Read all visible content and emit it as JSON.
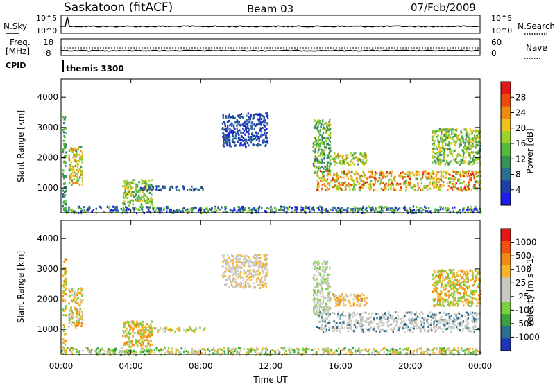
{
  "header": {
    "site": "Saskatoon (fitACF)",
    "beam": "Beam 03",
    "date": "07/Feb/2009"
  },
  "noise_panel": {
    "left_label": "N.Sky",
    "right_label": "N.Search",
    "left_ticks": [
      "10^5",
      "10^0"
    ],
    "right_ticks": [
      "10^5",
      "10^0"
    ]
  },
  "freq_panel": {
    "left_label_1": "Freq.",
    "left_label_2": "[MHz]",
    "right_label": "Nave",
    "left_ticks": [
      "18",
      "8"
    ],
    "right_ticks": [
      "60",
      "0"
    ]
  },
  "cpid": {
    "label": "CPID",
    "value": "themis 3300"
  },
  "colors": {
    "power": [
      "#1c1ce8",
      "#1e3ea8",
      "#2c6e8e",
      "#3a8f55",
      "#56b83c",
      "#9bd22e",
      "#f0c01c",
      "#f08a12",
      "#ea4a10",
      "#e01818"
    ],
    "velocity": [
      "#e01818",
      "#f05010",
      "#f08a12",
      "#f6b42a",
      "#c8c8c0",
      "#c8c8c0",
      "#7ad040",
      "#3aa040",
      "#2c6e8e",
      "#1c36b8"
    ]
  },
  "chart_data": [
    {
      "type": "heatmap",
      "name": "Power",
      "ylabel": "Slant Range [km]",
      "ylim": [
        180,
        4600
      ],
      "yticks": [
        "1000",
        "2000",
        "3000",
        "4000"
      ],
      "colorbar_label": "Power [dB]",
      "colorbar_ticks": [
        "4",
        "8",
        "12",
        "16",
        "20",
        "24",
        "28"
      ],
      "colorbar_range": [
        0,
        32
      ],
      "regions": [
        {
          "t0": 0.05,
          "t1": 0.25,
          "r0": 250,
          "r1": 3400,
          "v0": 8,
          "v1": 16
        },
        {
          "t0": 0.4,
          "t1": 1.2,
          "r0": 1100,
          "r1": 2400,
          "v0": 12,
          "v1": 26
        },
        {
          "t0": 3.5,
          "t1": 5.2,
          "r0": 450,
          "r1": 1300,
          "v0": 10,
          "v1": 22
        },
        {
          "t0": 4.5,
          "t1": 8.2,
          "r0": 950,
          "r1": 1100,
          "v0": 4,
          "v1": 10
        },
        {
          "t0": 9.2,
          "t1": 11.8,
          "r0": 2400,
          "r1": 3500,
          "v0": 2,
          "v1": 8
        },
        {
          "t0": 14.4,
          "t1": 15.4,
          "r0": 1500,
          "r1": 3300,
          "v0": 8,
          "v1": 20
        },
        {
          "t0": 15.5,
          "t1": 17.5,
          "r0": 1800,
          "r1": 2200,
          "v0": 12,
          "v1": 24
        },
        {
          "t0": 14.6,
          "t1": 24.0,
          "r0": 950,
          "r1": 1600,
          "v0": 14,
          "v1": 30
        },
        {
          "t0": 21.2,
          "t1": 24.0,
          "r0": 1800,
          "r1": 3000,
          "v0": 10,
          "v1": 22
        },
        {
          "t0": 0.0,
          "t1": 24.0,
          "r0": 200,
          "r1": 420,
          "v0": 0,
          "v1": 18
        }
      ]
    },
    {
      "type": "heatmap",
      "name": "Velocity",
      "ylabel": "Slant Range [km]",
      "xlabel": "Time UT",
      "ylim": [
        180,
        4600
      ],
      "yticks": [
        "1000",
        "2000",
        "3000",
        "4000"
      ],
      "xticks": [
        "00:00",
        "04:00",
        "08:00",
        "12:00",
        "16:00",
        "20:00",
        "00:00"
      ],
      "xlim_hours": [
        0,
        24
      ],
      "colorbar_label": "Velocity [m s^-1]",
      "colorbar_ticks": [
        "1000",
        "500",
        "100",
        "25",
        "-25",
        "-100",
        "-500",
        "-1000"
      ],
      "regions": [
        {
          "t0": 0.05,
          "t1": 0.25,
          "r0": 250,
          "r1": 3400,
          "k": [
            2,
            3,
            6
          ]
        },
        {
          "t0": 0.4,
          "t1": 1.2,
          "r0": 1100,
          "r1": 2400,
          "k": [
            2,
            3,
            4,
            6
          ]
        },
        {
          "t0": 3.5,
          "t1": 5.2,
          "r0": 450,
          "r1": 1300,
          "k": [
            2,
            3,
            6
          ]
        },
        {
          "t0": 4.5,
          "t1": 8.2,
          "r0": 950,
          "r1": 1100,
          "k": [
            4,
            6,
            3
          ]
        },
        {
          "t0": 9.2,
          "t1": 11.8,
          "r0": 2400,
          "r1": 3500,
          "k": [
            4,
            4,
            3
          ]
        },
        {
          "t0": 14.4,
          "t1": 15.4,
          "r0": 1500,
          "r1": 3300,
          "k": [
            4,
            4,
            6
          ]
        },
        {
          "t0": 15.5,
          "t1": 17.5,
          "r0": 1800,
          "r1": 2200,
          "k": [
            2,
            3,
            4
          ]
        },
        {
          "t0": 14.6,
          "t1": 24.0,
          "r0": 950,
          "r1": 1600,
          "k": [
            4,
            4,
            4,
            8
          ]
        },
        {
          "t0": 21.2,
          "t1": 24.0,
          "r0": 1800,
          "r1": 3000,
          "k": [
            2,
            3,
            6
          ]
        },
        {
          "t0": 0.0,
          "t1": 24.0,
          "r0": 200,
          "r1": 420,
          "k": [
            3,
            6,
            7,
            4
          ]
        }
      ]
    }
  ]
}
